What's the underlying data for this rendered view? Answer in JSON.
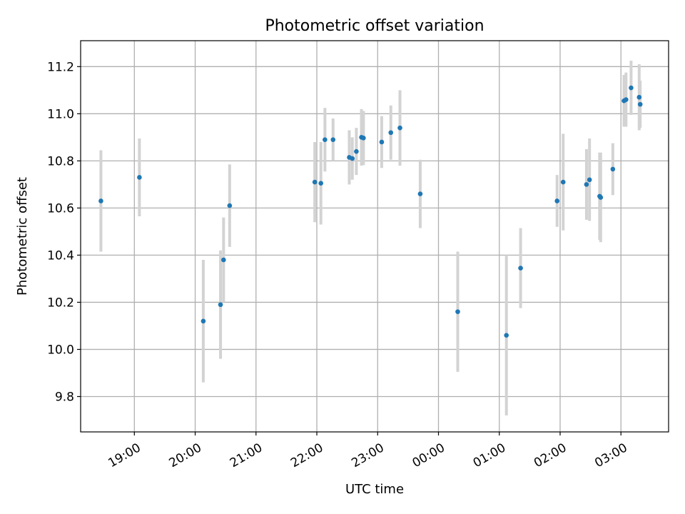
{
  "chart_data": {
    "type": "scatter",
    "title": "Photometric offset variation",
    "xlabel": "UTC time",
    "ylabel": "Photometric offset",
    "x_unit": "UTC time (HH:MM)",
    "xlim": [
      "18:07",
      "03:47"
    ],
    "ylim": [
      9.65,
      11.31
    ],
    "x_ticks": [
      "19:00",
      "20:00",
      "21:00",
      "22:00",
      "23:00",
      "00:00",
      "01:00",
      "02:00",
      "03:00"
    ],
    "y_ticks": [
      "9.8",
      "10.0",
      "10.2",
      "10.4",
      "10.6",
      "10.8",
      "11.0",
      "11.2"
    ],
    "grid": true,
    "colors": {
      "point": "#1f77b4",
      "errorbar": "#d3d3d3",
      "grid": "#b0b0b0"
    },
    "points": [
      {
        "x": "18:27",
        "y": 10.63,
        "err": 0.215
      },
      {
        "x": "19:05",
        "y": 10.73,
        "err": 0.165
      },
      {
        "x": "20:08",
        "y": 10.12,
        "err": 0.26
      },
      {
        "x": "20:25",
        "y": 10.19,
        "err": 0.23
      },
      {
        "x": "20:28",
        "y": 10.38,
        "err": 0.18
      },
      {
        "x": "20:34",
        "y": 10.61,
        "err": 0.175
      },
      {
        "x": "21:58",
        "y": 10.71,
        "err": 0.17
      },
      {
        "x": "22:04",
        "y": 10.705,
        "err": 0.175
      },
      {
        "x": "22:08",
        "y": 10.89,
        "err": 0.135
      },
      {
        "x": "22:16",
        "y": 10.89,
        "err": 0.09
      },
      {
        "x": "22:32",
        "y": 10.815,
        "err": 0.115
      },
      {
        "x": "22:35",
        "y": 10.81,
        "err": 0.09
      },
      {
        "x": "22:39",
        "y": 10.84,
        "err": 0.1
      },
      {
        "x": "22:44",
        "y": 10.9,
        "err": 0.12
      },
      {
        "x": "22:46",
        "y": 10.897,
        "err": 0.115
      },
      {
        "x": "23:04",
        "y": 10.88,
        "err": 0.11
      },
      {
        "x": "23:13",
        "y": 10.92,
        "err": 0.115
      },
      {
        "x": "23:22",
        "y": 10.94,
        "err": 0.16
      },
      {
        "x": "23:42",
        "y": 10.66,
        "err": 0.145
      },
      {
        "x": "00:19",
        "y": 10.16,
        "err": 0.255
      },
      {
        "x": "01:07",
        "y": 10.06,
        "err": 0.34
      },
      {
        "x": "01:21",
        "y": 10.345,
        "err": 0.17
      },
      {
        "x": "01:57",
        "y": 10.63,
        "err": 0.11
      },
      {
        "x": "02:03",
        "y": 10.71,
        "err": 0.205
      },
      {
        "x": "02:26",
        "y": 10.7,
        "err": 0.15
      },
      {
        "x": "02:29",
        "y": 10.72,
        "err": 0.175
      },
      {
        "x": "02:39",
        "y": 10.65,
        "err": 0.185
      },
      {
        "x": "02:40",
        "y": 10.645,
        "err": 0.19
      },
      {
        "x": "02:52",
        "y": 10.765,
        "err": 0.11
      },
      {
        "x": "03:03",
        "y": 11.055,
        "err": 0.11
      },
      {
        "x": "03:05",
        "y": 11.06,
        "err": 0.115
      },
      {
        "x": "03:10",
        "y": 11.11,
        "err": 0.115
      },
      {
        "x": "03:18",
        "y": 11.07,
        "err": 0.14
      },
      {
        "x": "03:19",
        "y": 11.04,
        "err": 0.1
      }
    ]
  }
}
